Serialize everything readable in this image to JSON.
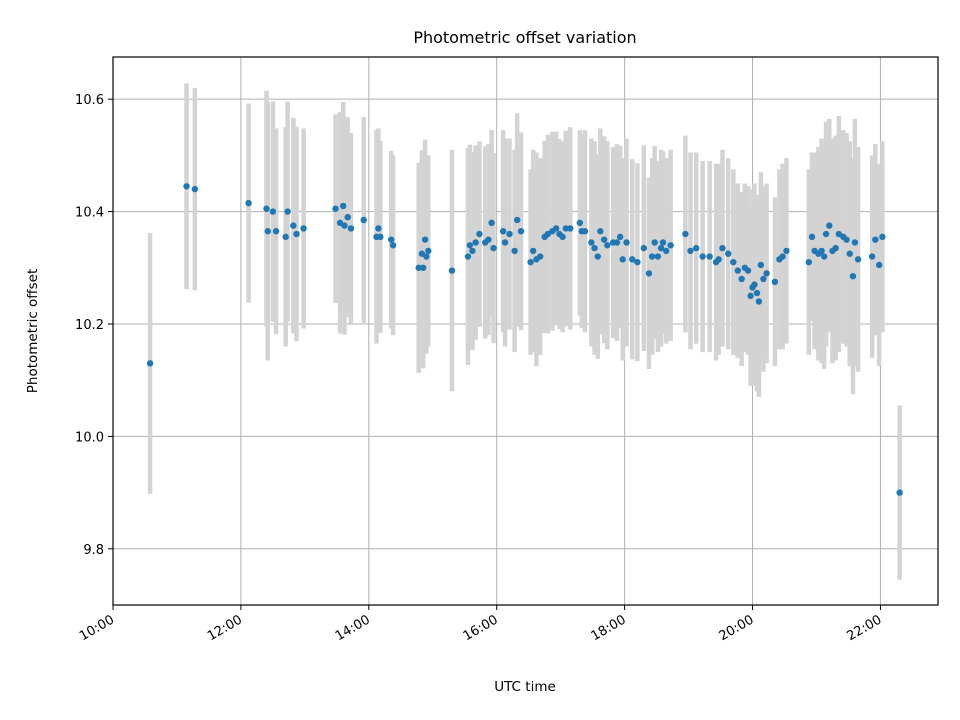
{
  "chart_data": {
    "type": "scatter",
    "title": "Photometric offset variation",
    "xlabel": "UTC time",
    "ylabel": "Photometric offset",
    "xlim": [
      10.0,
      22.9
    ],
    "ylim": [
      9.7,
      10.675
    ],
    "grid": true,
    "series": [
      {
        "color": "#1f77b4",
        "errorbar_color": "#d3d3d3",
        "x": [
          10.58,
          11.15,
          11.28,
          12.12,
          12.4,
          12.42,
          12.5,
          12.55,
          12.7,
          12.73,
          12.82,
          12.87,
          12.98,
          13.48,
          13.55,
          13.6,
          13.62,
          13.67,
          13.72,
          13.92,
          14.12,
          14.15,
          14.18,
          14.35,
          14.38,
          14.78,
          14.83,
          14.85,
          14.88,
          14.9,
          14.93,
          15.3,
          15.55,
          15.58,
          15.62,
          15.67,
          15.73,
          15.82,
          15.87,
          15.92,
          15.95,
          16.1,
          16.13,
          16.2,
          16.28,
          16.32,
          16.38,
          16.53,
          16.57,
          16.62,
          16.68,
          16.75,
          16.8,
          16.87,
          16.93,
          16.98,
          17.03,
          17.08,
          17.15,
          17.3,
          17.33,
          17.38,
          17.48,
          17.53,
          17.58,
          17.62,
          17.68,
          17.73,
          17.82,
          17.88,
          17.93,
          17.97,
          18.03,
          18.12,
          18.2,
          18.3,
          18.38,
          18.43,
          18.47,
          18.52,
          18.57,
          18.6,
          18.65,
          18.72,
          18.95,
          19.03,
          19.12,
          19.22,
          19.33,
          19.43,
          19.47,
          19.53,
          19.62,
          19.7,
          19.77,
          19.83,
          19.88,
          19.93,
          19.97,
          20.0,
          20.03,
          20.07,
          20.1,
          20.13,
          20.17,
          20.22,
          20.35,
          20.42,
          20.47,
          20.53,
          20.88,
          20.93,
          20.97,
          21.03,
          21.08,
          21.12,
          21.15,
          21.2,
          21.25,
          21.3,
          21.35,
          21.42,
          21.47,
          21.52,
          21.57,
          21.6,
          21.65,
          21.87,
          21.92,
          21.98,
          22.03,
          22.3
        ],
        "y": [
          10.13,
          10.445,
          10.44,
          10.415,
          10.405,
          10.365,
          10.4,
          10.365,
          10.355,
          10.4,
          10.375,
          10.36,
          10.37,
          10.405,
          10.38,
          10.41,
          10.375,
          10.39,
          10.37,
          10.385,
          10.355,
          10.37,
          10.355,
          10.35,
          10.34,
          10.3,
          10.325,
          10.3,
          10.35,
          10.32,
          10.33,
          10.295,
          10.32,
          10.34,
          10.33,
          10.345,
          10.36,
          10.345,
          10.35,
          10.38,
          10.335,
          10.365,
          10.345,
          10.36,
          10.33,
          10.385,
          10.365,
          10.31,
          10.33,
          10.315,
          10.32,
          10.355,
          10.36,
          10.365,
          10.37,
          10.36,
          10.355,
          10.37,
          10.37,
          10.38,
          10.365,
          10.365,
          10.345,
          10.335,
          10.32,
          10.365,
          10.35,
          10.34,
          10.345,
          10.345,
          10.355,
          10.315,
          10.345,
          10.315,
          10.31,
          10.335,
          10.29,
          10.32,
          10.345,
          10.32,
          10.335,
          10.345,
          10.33,
          10.34,
          10.36,
          10.33,
          10.335,
          10.32,
          10.32,
          10.31,
          10.315,
          10.335,
          10.325,
          10.31,
          10.295,
          10.28,
          10.3,
          10.295,
          10.25,
          10.265,
          10.27,
          10.255,
          10.24,
          10.305,
          10.28,
          10.29,
          10.275,
          10.315,
          10.32,
          10.33,
          10.31,
          10.355,
          10.33,
          10.325,
          10.33,
          10.32,
          10.36,
          10.375,
          10.33,
          10.335,
          10.36,
          10.355,
          10.35,
          10.325,
          10.285,
          10.345,
          10.315,
          10.32,
          10.35,
          10.305,
          10.355,
          9.9
        ],
        "yerr": [
          0.232,
          0.183,
          0.18,
          0.177,
          0.21,
          0.23,
          0.196,
          0.183,
          0.195,
          0.196,
          0.192,
          0.191,
          0.178,
          0.168,
          0.197,
          0.185,
          0.194,
          0.178,
          0.17,
          0.183,
          0.19,
          0.178,
          0.171,
          0.158,
          0.16,
          0.187,
          0.184,
          0.179,
          0.178,
          0.173,
          0.17,
          0.215,
          0.193,
          0.179,
          0.176,
          0.173,
          0.165,
          0.171,
          0.17,
          0.165,
          0.169,
          0.18,
          0.185,
          0.17,
          0.18,
          0.19,
          0.176,
          0.165,
          0.18,
          0.19,
          0.175,
          0.171,
          0.177,
          0.177,
          0.172,
          0.169,
          0.17,
          0.174,
          0.18,
          0.165,
          0.172,
          0.18,
          0.185,
          0.19,
          0.182,
          0.183,
          0.184,
          0.185,
          0.17,
          0.175,
          0.162,
          0.18,
          0.185,
          0.178,
          0.176,
          0.183,
          0.17,
          0.175,
          0.172,
          0.17,
          0.175,
          0.162,
          0.165,
          0.17,
          0.175,
          0.175,
          0.17,
          0.17,
          0.17,
          0.175,
          0.17,
          0.175,
          0.17,
          0.165,
          0.155,
          0.155,
          0.15,
          0.15,
          0.16,
          0.175,
          0.18,
          0.175,
          0.17,
          0.165,
          0.165,
          0.16,
          0.15,
          0.16,
          0.165,
          0.165,
          0.165,
          0.15,
          0.175,
          0.19,
          0.2,
          0.2,
          0.2,
          0.19,
          0.2,
          0.2,
          0.21,
          0.19,
          0.19,
          0.2,
          0.21,
          0.22,
          0.2,
          0.18,
          0.17,
          0.18,
          0.17,
          0.155
        ]
      }
    ],
    "yticks": [
      9.8,
      10.0,
      10.2,
      10.4,
      10.6
    ],
    "ytick_labels": [
      "9.8",
      "10.0",
      "10.2",
      "10.4",
      "10.6"
    ],
    "xticks": [
      10,
      12,
      14,
      16,
      18,
      20,
      22
    ],
    "xtick_labels": [
      "10:00",
      "12:00",
      "14:00",
      "16:00",
      "18:00",
      "20:00",
      "22:00"
    ]
  }
}
